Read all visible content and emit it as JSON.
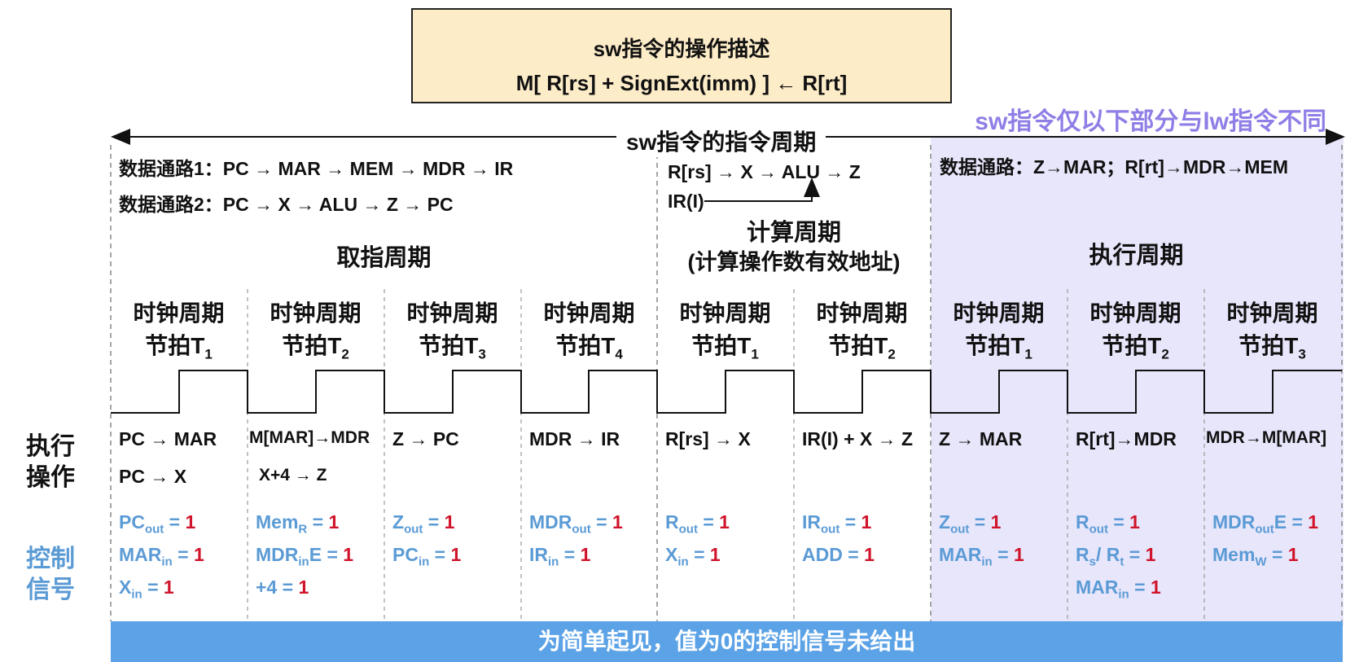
{
  "title": {
    "heading": "sw指令的操作描述",
    "formula": "M[ R[rs] + SignExt(imm) ] ← R[rt]"
  },
  "note": "sw指令仅以下部分与lw指令不同",
  "cycle_label": "sw指令的指令周期",
  "fetch": {
    "path1": "数据通路1：PC → MAR → MEM → MDR → IR",
    "path2": "数据通路2：PC → X → ALU → Z → PC",
    "phase": "取指周期"
  },
  "compute": {
    "path1": "R[rs] → X → ALU → Z",
    "path2": "IR(I)",
    "phase_line1": "计算周期",
    "phase_line2": "(计算操作数有效地址)"
  },
  "execute": {
    "path": "数据通路：Z→MAR；R[rt]→MDR→MEM",
    "phase": "执行周期"
  },
  "clock_label": "时钟周期",
  "beat_label": "节拍T",
  "columns": [
    {
      "sub": "1",
      "ops": [
        "PC → MAR",
        "PC → X"
      ],
      "signals": [
        {
          "n": "PC",
          "s": "out",
          "t": "",
          "v": "1"
        },
        {
          "n": "MAR",
          "s": "in",
          "t": "",
          "v": "1"
        },
        {
          "n": "X",
          "s": "in",
          "t": "",
          "v": "1"
        }
      ]
    },
    {
      "sub": "2",
      "ops": [
        "M[MAR]→MDR",
        "X+4 → Z"
      ],
      "signals": [
        {
          "n": "Mem",
          "s": "R",
          "t": "",
          "v": "1"
        },
        {
          "n": "MDR",
          "s": "in",
          "t": "E",
          "v": "1"
        },
        {
          "n": "+4",
          "s": "",
          "t": "",
          "v": "1"
        }
      ]
    },
    {
      "sub": "3",
      "ops": [
        "Z → PC"
      ],
      "signals": [
        {
          "n": "Z",
          "s": "out",
          "t": "",
          "v": "1"
        },
        {
          "n": "PC",
          "s": "in",
          "t": "",
          "v": "1"
        }
      ]
    },
    {
      "sub": "4",
      "ops": [
        "MDR → IR"
      ],
      "signals": [
        {
          "n": "MDR",
          "s": "out",
          "t": "",
          "v": "1"
        },
        {
          "n": "IR",
          "s": "in",
          "t": "",
          "v": "1"
        }
      ]
    },
    {
      "sub": "1",
      "ops": [
        "R[rs] → X"
      ],
      "signals": [
        {
          "n": "R",
          "s": "out",
          "t": "",
          "v": "1"
        },
        {
          "n": "X",
          "s": "in",
          "t": "",
          "v": "1"
        }
      ]
    },
    {
      "sub": "2",
      "ops": [
        "IR(I) + X → Z"
      ],
      "signals": [
        {
          "n": "IR",
          "s": "out",
          "t": "",
          "v": "1"
        },
        {
          "n": "ADD",
          "s": "",
          "t": "",
          "v": "1"
        }
      ]
    },
    {
      "sub": "1",
      "ops": [
        "Z → MAR"
      ],
      "signals": [
        {
          "n": "Z",
          "s": "out",
          "t": "",
          "v": "1"
        },
        {
          "n": "MAR",
          "s": "in",
          "t": "",
          "v": "1"
        }
      ]
    },
    {
      "sub": "2",
      "ops": [
        "R[rt]→MDR"
      ],
      "signals": [
        {
          "n": "R",
          "s": "out",
          "t": "",
          "v": "1"
        },
        {
          "n": "R",
          "s": "s",
          "t": "/ R",
          "s2": "t",
          "v": "1"
        },
        {
          "n": "MAR",
          "s": "in",
          "t": "",
          "v": "1"
        }
      ]
    },
    {
      "sub": "3",
      "ops": [
        "MDR→M[MAR]"
      ],
      "signals": [
        {
          "n": "MDR",
          "s": "out",
          "t": "E",
          "v": "1"
        },
        {
          "n": "Mem",
          "s": "W",
          "t": "",
          "v": "1"
        }
      ]
    }
  ],
  "row_labels": {
    "ops": [
      "执行",
      "操作"
    ],
    "signals": [
      "控制",
      "信号"
    ]
  },
  "footer": "为简单起见，值为0的控制信号未给出"
}
